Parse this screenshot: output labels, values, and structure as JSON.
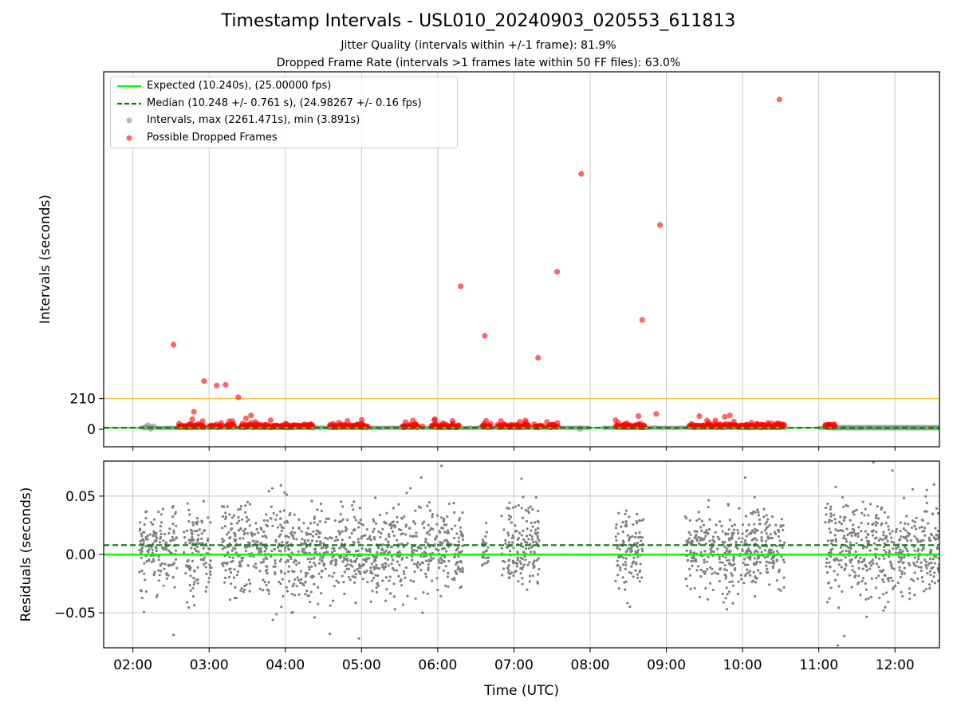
{
  "title": "Timestamp Intervals - USL010_20240903_020553_611813",
  "subtitles": [
    "Jitter Quality (intervals within +/-1 frame): 81.9%",
    "Dropped Frame Rate (intervals >1 frames late within 50 FF files): 63.0%"
  ],
  "colors": {
    "expected": "#00ff00",
    "median": "#008000",
    "intervals": "#808080",
    "dropped": "#ff0000",
    "threshold": "#f5c242",
    "grid": "#b0b0b0"
  },
  "chart_data": [
    {
      "type": "scatter",
      "ylabel": "Intervals (seconds)",
      "x_ticks": [
        "02:00",
        "03:00",
        "04:00",
        "05:00",
        "06:00",
        "07:00",
        "08:00",
        "09:00",
        "10:00",
        "11:00",
        "12:00"
      ],
      "y_ticks": [
        "0",
        "210"
      ],
      "xlim": [
        "01:37",
        "12:35"
      ],
      "ylim": [
        -120,
        2450
      ],
      "threshold_line": 210,
      "expected": 10.24,
      "median": 10.248,
      "grid": "vertical",
      "legend_position": "upper-left",
      "legend": [
        "Expected (10.240s), (25.00000 fps)",
        "Median (10.248 +/- 0.761 s), (24.98267 +/- 0.16 fps)",
        "Intervals, max (2261.471s), min (3.891s)",
        "Possible Dropped Frames"
      ],
      "dropped_frames": [
        {
          "x": "02:32",
          "y": 580
        },
        {
          "x": "02:48",
          "y": 120
        },
        {
          "x": "02:56",
          "y": 330
        },
        {
          "x": "03:06",
          "y": 300
        },
        {
          "x": "03:13",
          "y": 305
        },
        {
          "x": "03:23",
          "y": 220
        },
        {
          "x": "03:29",
          "y": 75
        },
        {
          "x": "03:33",
          "y": 95
        },
        {
          "x": "06:18",
          "y": 980
        },
        {
          "x": "06:37",
          "y": 640
        },
        {
          "x": "07:19",
          "y": 490
        },
        {
          "x": "07:34",
          "y": 1080
        },
        {
          "x": "07:53",
          "y": 1750
        },
        {
          "x": "08:41",
          "y": 750
        },
        {
          "x": "08:55",
          "y": 1400
        },
        {
          "x": "08:52",
          "y": 105
        },
        {
          "x": "08:38",
          "y": 90
        },
        {
          "x": "10:29",
          "y": 2260
        },
        {
          "x": "09:26",
          "y": 90
        },
        {
          "x": "09:32",
          "y": 60
        },
        {
          "x": "09:46",
          "y": 85
        },
        {
          "x": "09:50",
          "y": 95
        },
        {
          "x": "10:07",
          "y": 45
        },
        {
          "x": "07:09",
          "y": 60
        },
        {
          "x": "07:26",
          "y": 50
        },
        {
          "x": "06:36",
          "y": 25
        },
        {
          "x": "05:48",
          "y": 20
        }
      ],
      "dropped_frame_clusters": [
        {
          "start": "02:36",
          "end": "02:56"
        },
        {
          "start": "03:00",
          "end": "03:10"
        },
        {
          "start": "03:13",
          "end": "03:20"
        },
        {
          "start": "03:25",
          "end": "04:22"
        },
        {
          "start": "04:35",
          "end": "05:05"
        },
        {
          "start": "05:32",
          "end": "05:45"
        },
        {
          "start": "05:55",
          "end": "06:17"
        },
        {
          "start": "06:35",
          "end": "06:42"
        },
        {
          "start": "06:47",
          "end": "07:12"
        },
        {
          "start": "07:16",
          "end": "07:23"
        },
        {
          "start": "07:27",
          "end": "07:35"
        },
        {
          "start": "08:20",
          "end": "08:43"
        },
        {
          "start": "09:18",
          "end": "10:33"
        },
        {
          "start": "11:05",
          "end": "11:13"
        }
      ]
    },
    {
      "type": "scatter",
      "xlabel": "Time (UTC)",
      "ylabel": "Residuals (seconds)",
      "x_ticks": [
        "02:00",
        "03:00",
        "04:00",
        "05:00",
        "06:00",
        "07:00",
        "08:00",
        "09:00",
        "10:00",
        "11:00",
        "12:00"
      ],
      "y_ticks": [
        "−0.05",
        "0.00",
        "0.05"
      ],
      "xlim": [
        "01:37",
        "12:35"
      ],
      "ylim": [
        -0.08,
        0.08
      ],
      "expected": 0.0,
      "median": 0.008,
      "grid": "both",
      "residual_segments": [
        {
          "start": "02:05",
          "end": "02:35",
          "spread": 0.025
        },
        {
          "start": "02:40",
          "end": "03:02",
          "spread": 0.025
        },
        {
          "start": "03:10",
          "end": "06:20",
          "spread": 0.026
        },
        {
          "start": "06:35",
          "end": "06:40",
          "spread": 0.015
        },
        {
          "start": "06:50",
          "end": "07:20",
          "spread": 0.025
        },
        {
          "start": "08:20",
          "end": "08:42",
          "spread": 0.025
        },
        {
          "start": "09:15",
          "end": "09:30",
          "spread": 0.022
        },
        {
          "start": "09:30",
          "end": "10:33",
          "spread": 0.025
        },
        {
          "start": "11:05",
          "end": "12:35",
          "spread": 0.027
        }
      ],
      "outliers": [
        {
          "x": "02:32",
          "y": -0.069
        },
        {
          "x": "04:05",
          "y": -0.05
        },
        {
          "x": "04:23",
          "y": -0.054
        },
        {
          "x": "04:35",
          "y": -0.068
        },
        {
          "x": "04:58",
          "y": -0.072
        },
        {
          "x": "05:48",
          "y": -0.05
        },
        {
          "x": "06:03",
          "y": 0.076
        },
        {
          "x": "07:06",
          "y": 0.065
        },
        {
          "x": "11:15",
          "y": -0.078
        },
        {
          "x": "11:20",
          "y": -0.07
        },
        {
          "x": "11:43",
          "y": 0.079
        },
        {
          "x": "11:58",
          "y": 0.072
        },
        {
          "x": "10:02",
          "y": 0.066
        },
        {
          "x": "05:47",
          "y": 0.066
        }
      ]
    }
  ]
}
